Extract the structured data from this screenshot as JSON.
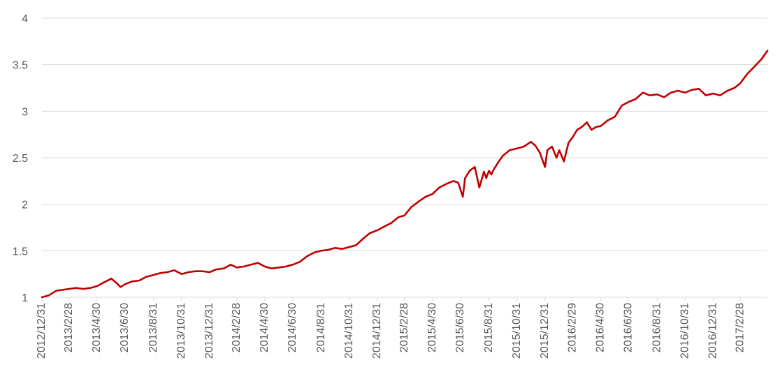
{
  "chart_data": {
    "type": "line",
    "title": "",
    "xlabel": "",
    "ylabel": "",
    "grid": true,
    "legend": "none",
    "ylim": [
      1,
      4
    ],
    "yticks": [
      "1",
      "1.5",
      "2",
      "2.5",
      "3",
      "3.5",
      "4"
    ],
    "xlim": [
      "2012/12/31",
      "2017/4/28"
    ],
    "xticks": [
      "2012/12/31",
      "2013/2/28",
      "2013/4/30",
      "2013/6/30",
      "2013/8/31",
      "2013/10/31",
      "2013/12/31",
      "2014/2/28",
      "2014/4/30",
      "2014/6/30",
      "2014/8/31",
      "2014/10/31",
      "2014/12/31",
      "2015/2/28",
      "2015/4/30",
      "2015/6/30",
      "2015/8/31",
      "2015/10/31",
      "2015/12/31",
      "2016/2/29",
      "2016/4/30",
      "2016/6/30",
      "2016/8/31",
      "2016/10/31",
      "2016/12/31",
      "2017/2/28"
    ],
    "series": [
      {
        "color": "#c00000",
        "x": [
          "2012/12/31",
          "2013/1/15",
          "2013/1/31",
          "2013/2/28",
          "2013/3/15",
          "2013/3/31",
          "2013/4/15",
          "2013/4/30",
          "2013/5/15",
          "2013/5/31",
          "2013/6/10",
          "2013/6/20",
          "2013/6/30",
          "2013/7/15",
          "2013/7/31",
          "2013/8/15",
          "2013/8/31",
          "2013/9/15",
          "2013/9/30",
          "2013/10/15",
          "2013/10/31",
          "2013/11/15",
          "2013/11/30",
          "2013/12/15",
          "2013/12/31",
          "2014/1/15",
          "2014/1/31",
          "2014/2/15",
          "2014/2/28",
          "2014/3/15",
          "2014/3/31",
          "2014/4/15",
          "2014/4/30",
          "2014/5/15",
          "2014/5/31",
          "2014/6/15",
          "2014/6/30",
          "2014/7/15",
          "2014/7/31",
          "2014/8/15",
          "2014/8/31",
          "2014/9/15",
          "2014/9/30",
          "2014/10/15",
          "2014/10/31",
          "2014/11/15",
          "2014/11/30",
          "2014/12/15",
          "2014/12/31",
          "2015/1/15",
          "2015/1/31",
          "2015/2/15",
          "2015/2/28",
          "2015/3/15",
          "2015/3/31",
          "2015/4/15",
          "2015/4/30",
          "2015/5/15",
          "2015/5/31",
          "2015/6/15",
          "2015/6/25",
          "2015/7/5",
          "2015/7/10",
          "2015/7/20",
          "2015/7/31",
          "2015/8/10",
          "2015/8/20",
          "2015/8/25",
          "2015/8/31",
          "2015/9/5",
          "2015/9/10",
          "2015/9/20",
          "2015/9/30",
          "2015/10/15",
          "2015/10/31",
          "2015/11/15",
          "2015/11/30",
          "2015/12/10",
          "2015/12/20",
          "2015/12/31",
          "2016/1/5",
          "2016/1/15",
          "2016/1/25",
          "2016/1/31",
          "2016/2/10",
          "2016/2/20",
          "2016/2/29",
          "2016/3/10",
          "2016/3/20",
          "2016/3/31",
          "2016/4/10",
          "2016/4/20",
          "2016/4/30",
          "2016/5/15",
          "2016/5/31",
          "2016/6/15",
          "2016/6/30",
          "2016/7/15",
          "2016/7/31",
          "2016/8/15",
          "2016/8/31",
          "2016/9/15",
          "2016/9/30",
          "2016/10/15",
          "2016/10/31",
          "2016/11/15",
          "2016/11/30",
          "2016/12/15",
          "2016/12/31",
          "2017/1/15",
          "2017/1/31",
          "2017/2/15",
          "2017/2/28",
          "2017/3/15",
          "2017/3/31",
          "2017/4/15",
          "2017/4/28"
        ],
        "y": [
          1.0,
          1.02,
          1.07,
          1.09,
          1.1,
          1.09,
          1.1,
          1.12,
          1.16,
          1.2,
          1.16,
          1.11,
          1.14,
          1.17,
          1.18,
          1.22,
          1.24,
          1.26,
          1.27,
          1.29,
          1.25,
          1.27,
          1.28,
          1.28,
          1.27,
          1.3,
          1.31,
          1.35,
          1.32,
          1.33,
          1.35,
          1.37,
          1.33,
          1.31,
          1.32,
          1.33,
          1.35,
          1.38,
          1.44,
          1.48,
          1.5,
          1.51,
          1.53,
          1.52,
          1.54,
          1.56,
          1.63,
          1.69,
          1.72,
          1.76,
          1.8,
          1.86,
          1.88,
          1.97,
          2.03,
          2.08,
          2.11,
          2.18,
          2.22,
          2.25,
          2.23,
          2.08,
          2.28,
          2.36,
          2.4,
          2.18,
          2.35,
          2.28,
          2.36,
          2.32,
          2.37,
          2.45,
          2.52,
          2.58,
          2.6,
          2.62,
          2.67,
          2.63,
          2.55,
          2.4,
          2.58,
          2.62,
          2.5,
          2.58,
          2.46,
          2.66,
          2.72,
          2.8,
          2.83,
          2.88,
          2.8,
          2.83,
          2.84,
          2.9,
          2.94,
          3.06,
          3.1,
          3.13,
          3.2,
          3.17,
          3.18,
          3.15,
          3.2,
          3.22,
          3.2,
          3.23,
          3.24,
          3.17,
          3.19,
          3.17,
          3.22,
          3.25,
          3.3,
          3.4,
          3.48,
          3.56,
          3.65
        ]
      }
    ]
  }
}
